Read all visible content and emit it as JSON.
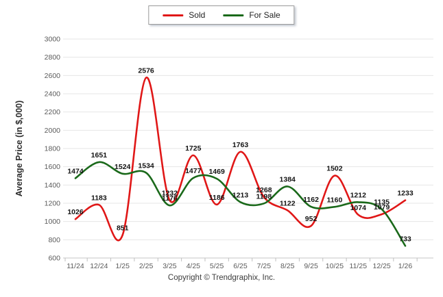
{
  "chart_data": {
    "type": "line",
    "categories": [
      "11/24",
      "12/24",
      "1/25",
      "2/25",
      "3/25",
      "4/25",
      "5/25",
      "6/25",
      "7/25",
      "8/25",
      "9/25",
      "10/25",
      "11/25",
      "12/25",
      "1/26"
    ],
    "series": [
      {
        "name": "Sold",
        "color": "#e01717",
        "values": [
          1026,
          1183,
          851,
          2576,
          1232,
          1725,
          1186,
          1763,
          1268,
          1122,
          952,
          1502,
          1074,
          1079,
          1233
        ]
      },
      {
        "name": "For Sale",
        "color": "#1a691a",
        "values": [
          1474,
          1651,
          1524,
          1534,
          1176,
          1477,
          1469,
          1213,
          1198,
          1384,
          1162,
          1160,
          1212,
          1135,
          733
        ]
      }
    ],
    "title": "",
    "xlabel": "",
    "ylabel": "Average Price (in $,000)",
    "ylim": [
      600,
      3000
    ],
    "ytick_step": 200,
    "grid": true,
    "legend_position": "top-center"
  },
  "footer": {
    "copyright": "Copyright © Trendgraphix, Inc."
  },
  "colors": {
    "grid": "#e4e4e4",
    "axis": "#c6c6c6",
    "tick": "#bfbfbf",
    "tick_text": "#5a5a5a",
    "label_text": "#141414",
    "axis_title": "#2e2e2e"
  }
}
